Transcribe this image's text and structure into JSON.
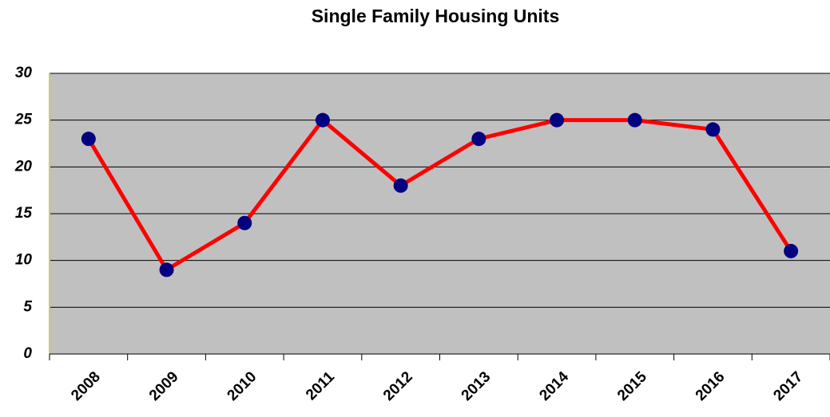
{
  "chart_data": {
    "type": "line",
    "title": "Single Family Housing Units",
    "categories": [
      "2008",
      "2009",
      "2010",
      "2011",
      "2012",
      "2013",
      "2014",
      "2015",
      "2016",
      "2017"
    ],
    "values": [
      23,
      9,
      14,
      25,
      18,
      23,
      25,
      25,
      24,
      11
    ],
    "color": "#ff0000",
    "marker_color": "#000080",
    "ylim": [
      0,
      30
    ],
    "yticks": [
      0,
      5,
      10,
      15,
      20,
      25,
      30
    ],
    "grid": true
  }
}
